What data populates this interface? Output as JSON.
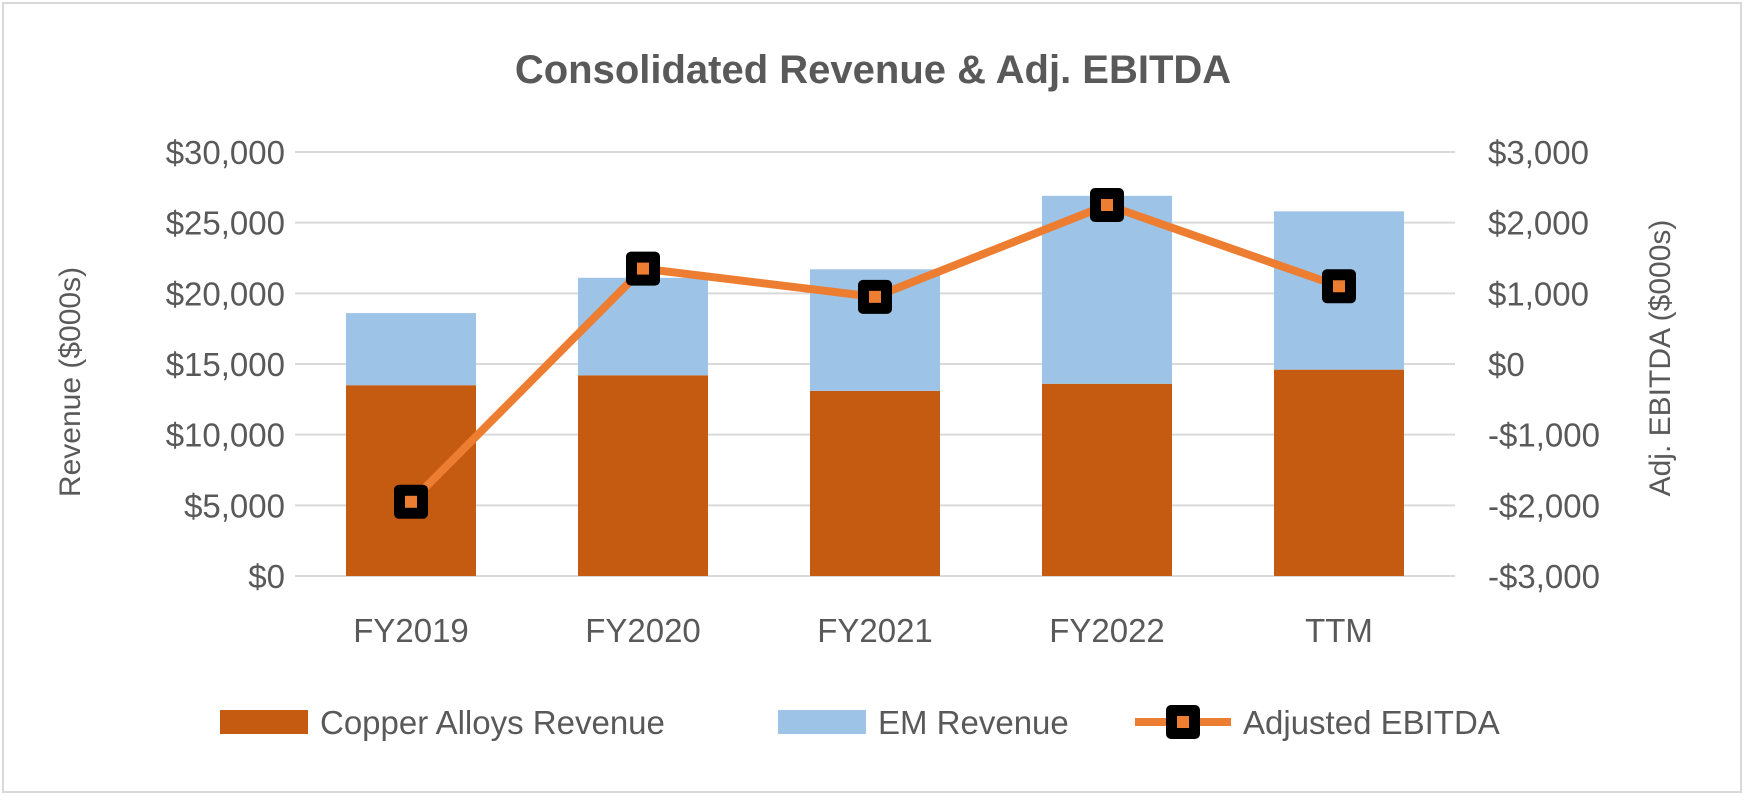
{
  "chart_data": {
    "type": "bar",
    "title": "Consolidated Revenue & Adj. EBITDA",
    "categories": [
      "FY2019",
      "FY2020",
      "FY2021",
      "FY2022",
      "TTM"
    ],
    "ylabel": "Revenue ($000s)",
    "y2label": "Adj. EBITDA ($000s)",
    "ylim": [
      0,
      30000
    ],
    "y2lim": [
      -3000,
      3000
    ],
    "yticks": [
      "$0",
      "$5,000",
      "$10,000",
      "$15,000",
      "$20,000",
      "$25,000",
      "$30,000"
    ],
    "y2ticks": [
      "-$3,000",
      "-$2,000",
      "-$1,000",
      "$0",
      "$1,000",
      "$2,000",
      "$3,000"
    ],
    "stacked": true,
    "grid": true,
    "legend_position": "bottom",
    "series": [
      {
        "name": "Copper Alloys Revenue",
        "type": "bar",
        "axis": "left",
        "color": "#c55a11",
        "values": [
          13500,
          14200,
          13100,
          13600,
          14600
        ]
      },
      {
        "name": "EM Revenue",
        "type": "bar",
        "axis": "left",
        "color": "#9dc3e6",
        "values": [
          5100,
          6900,
          8600,
          13300,
          11200
        ]
      },
      {
        "name": "Adjusted EBITDA",
        "type": "line",
        "axis": "right",
        "color": "#ed7d31",
        "marker_color": "#000000",
        "values": [
          -1950,
          1350,
          950,
          2250,
          1100
        ]
      }
    ]
  }
}
